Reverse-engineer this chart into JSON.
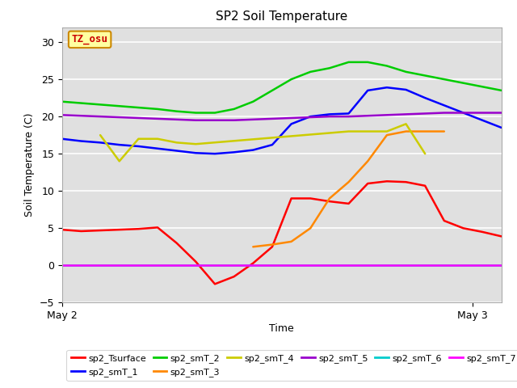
{
  "title": "SP2 Soil Temperature",
  "xlabel": "Time",
  "ylabel": "Soil Temperature (C)",
  "ylim": [
    -5,
    32
  ],
  "background_color": "#e0e0e0",
  "annotation_text": "TZ_osu",
  "annotation_box_color": "#ffffa0",
  "annotation_text_color": "#cc0000",
  "series_order": [
    "sp2_Tsurface",
    "sp2_smT_1",
    "sp2_smT_2",
    "sp2_smT_3",
    "sp2_smT_4",
    "sp2_smT_5",
    "sp2_smT_6",
    "sp2_smT_7"
  ],
  "legend_order": [
    "sp2_Tsurface",
    "sp2_smT_1",
    "sp2_smT_2",
    "sp2_smT_3",
    "sp2_smT_4",
    "sp2_smT_5",
    "sp2_smT_6",
    "sp2_smT_7"
  ],
  "series": {
    "sp2_Tsurface": {
      "color": "#ff0000",
      "x": [
        0,
        1,
        2,
        3,
        4,
        5,
        6,
        7,
        8,
        9,
        10,
        11,
        12,
        13,
        14,
        15,
        16,
        17,
        18,
        19,
        20,
        21,
        22,
        23
      ],
      "y": [
        4.8,
        4.6,
        4.7,
        4.8,
        4.9,
        5.1,
        3.0,
        0.5,
        -2.5,
        -1.5,
        0.3,
        2.5,
        9.0,
        9.0,
        8.6,
        8.3,
        11.0,
        11.3,
        11.2,
        10.7,
        6.0,
        5.0,
        4.5,
        3.9
      ]
    },
    "sp2_smT_1": {
      "color": "#0000ff",
      "x": [
        0,
        1,
        2,
        3,
        4,
        5,
        6,
        7,
        8,
        9,
        10,
        11,
        12,
        13,
        14,
        15,
        16,
        17,
        18,
        19,
        20,
        21,
        22,
        23
      ],
      "y": [
        17.0,
        16.7,
        16.5,
        16.2,
        16.0,
        15.7,
        15.4,
        15.1,
        15.0,
        15.2,
        15.5,
        16.2,
        19.0,
        20.0,
        20.3,
        20.4,
        23.5,
        23.9,
        23.6,
        22.5,
        21.5,
        20.5,
        19.5,
        18.5
      ]
    },
    "sp2_smT_2": {
      "color": "#00cc00",
      "x": [
        0,
        1,
        2,
        3,
        4,
        5,
        6,
        7,
        8,
        9,
        10,
        11,
        12,
        13,
        14,
        15,
        16,
        17,
        18,
        19,
        20,
        21,
        22,
        23
      ],
      "y": [
        22.0,
        21.8,
        21.6,
        21.4,
        21.2,
        21.0,
        20.7,
        20.5,
        20.5,
        21.0,
        22.0,
        23.5,
        25.0,
        26.0,
        26.5,
        27.3,
        27.3,
        26.8,
        26.0,
        25.5,
        25.0,
        24.5,
        24.0,
        23.5
      ]
    },
    "sp2_smT_3": {
      "color": "#ff8800",
      "x": [
        10,
        11,
        12,
        13,
        14,
        15,
        16,
        17,
        18,
        19,
        20
      ],
      "y": [
        2.5,
        2.8,
        3.2,
        5.0,
        9.0,
        11.2,
        14.0,
        17.5,
        18.0,
        18.0,
        18.0
      ]
    },
    "sp2_smT_4": {
      "color": "#cccc00",
      "x": [
        2,
        3,
        4,
        5,
        6,
        7,
        15,
        16,
        17,
        18,
        19
      ],
      "y": [
        17.5,
        14.0,
        17.0,
        17.0,
        16.5,
        16.3,
        18.0,
        18.0,
        18.0,
        19.0,
        15.0
      ]
    },
    "sp2_smT_5": {
      "color": "#9900cc",
      "x": [
        0,
        1,
        2,
        3,
        4,
        5,
        6,
        7,
        8,
        9,
        10,
        11,
        12,
        13,
        14,
        15,
        16,
        17,
        18,
        19,
        20,
        21,
        22,
        23
      ],
      "y": [
        20.2,
        20.1,
        20.0,
        19.9,
        19.8,
        19.7,
        19.6,
        19.5,
        19.5,
        19.5,
        19.6,
        19.7,
        19.8,
        19.9,
        20.0,
        20.0,
        20.1,
        20.2,
        20.3,
        20.4,
        20.5,
        20.5,
        20.5,
        20.5
      ]
    },
    "sp2_smT_6": {
      "color": "#00cccc",
      "x": [
        0,
        23
      ],
      "y": [
        0.0,
        0.0
      ]
    },
    "sp2_smT_7": {
      "color": "#ff00ff",
      "x": [
        0,
        23
      ],
      "y": [
        0.0,
        0.0
      ]
    }
  }
}
